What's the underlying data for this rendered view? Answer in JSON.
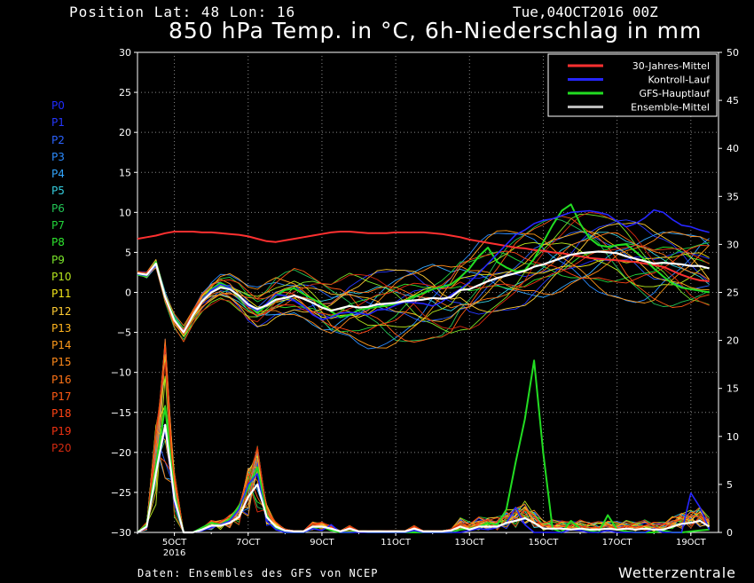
{
  "header": {
    "position": "Position  Lat: 48 Lon: 16",
    "date": "Tue,04OCT2016 00Z",
    "title": "850 hPa Temp. in °C, 6h-Niederschlag in mm"
  },
  "footer": {
    "source": "Daten: Ensembles des GFS von NCEP",
    "brand": "Wetterzentrale"
  },
  "members": [
    {
      "label": "P0",
      "color": "#1f2bff"
    },
    {
      "label": "P1",
      "color": "#2638ff"
    },
    {
      "label": "P2",
      "color": "#2b63ff"
    },
    {
      "label": "P3",
      "color": "#2b8bff"
    },
    {
      "label": "P4",
      "color": "#33a6ff"
    },
    {
      "label": "P5",
      "color": "#35cfe0"
    },
    {
      "label": "P6",
      "color": "#22c455"
    },
    {
      "label": "P7",
      "color": "#22d43a"
    },
    {
      "label": "P8",
      "color": "#2ee62e"
    },
    {
      "label": "P9",
      "color": "#7ae62a"
    },
    {
      "label": "P10",
      "color": "#b6e61e"
    },
    {
      "label": "P11",
      "color": "#f2e61a"
    },
    {
      "label": "P12",
      "color": "#ffcc33"
    },
    {
      "label": "P13",
      "color": "#ffb41e"
    },
    {
      "label": "P14",
      "color": "#ff9a1a"
    },
    {
      "label": "P15",
      "color": "#ff8a1a"
    },
    {
      "label": "P16",
      "color": "#ff7316"
    },
    {
      "label": "P17",
      "color": "#ff5a14"
    },
    {
      "label": "P18",
      "color": "#ff4414"
    },
    {
      "label": "P19",
      "color": "#f03212"
    },
    {
      "label": "P20",
      "color": "#d42a10"
    }
  ],
  "chart_data": {
    "type": "line",
    "y_left": {
      "min": -30,
      "max": 30,
      "ticks": [
        30,
        25,
        20,
        15,
        10,
        5,
        0,
        -5,
        -10,
        -15,
        -20,
        -25,
        -30
      ]
    },
    "y_right": {
      "min": 0,
      "max": 50,
      "ticks": [
        50,
        45,
        40,
        35,
        30,
        25,
        20,
        15,
        10,
        5,
        0
      ]
    },
    "x_ticks": [
      {
        "day": 5,
        "label": "5OCT",
        "sub": "2016"
      },
      {
        "day": 7,
        "label": "7OCT",
        "sub": ""
      },
      {
        "day": 9,
        "label": "9OCT",
        "sub": ""
      },
      {
        "day": 11,
        "label": "11OCT",
        "sub": ""
      },
      {
        "day": 13,
        "label": "13OCT",
        "sub": ""
      },
      {
        "day": 15,
        "label": "15OCT",
        "sub": ""
      },
      {
        "day": 17,
        "label": "17OCT",
        "sub": ""
      },
      {
        "day": 19,
        "label": "19OCT",
        "sub": ""
      }
    ],
    "x_range_days": [
      4,
      19.75
    ],
    "grid": true,
    "legend": {
      "position": "top-right",
      "entries": [
        {
          "label": "30-Jahres-Mittel",
          "color": "#ff3030"
        },
        {
          "label": "Kontroll-Lauf",
          "color": "#2626ff"
        },
        {
          "label": "GFS-Hauptlauf",
          "color": "#22dd22"
        },
        {
          "label": "Ensemble-Mittel",
          "color": "#bbbbbb"
        }
      ]
    },
    "step_hours": 6,
    "temp_climate": [
      6.7,
      6.9,
      7.1,
      7.4,
      7.6,
      7.6,
      7.6,
      7.5,
      7.5,
      7.4,
      7.3,
      7.2,
      7.0,
      6.7,
      6.4,
      6.3,
      6.5,
      6.7,
      6.9,
      7.1,
      7.3,
      7.5,
      7.6,
      7.6,
      7.5,
      7.4,
      7.4,
      7.4,
      7.5,
      7.5,
      7.5,
      7.5,
      7.4,
      7.3,
      7.1,
      6.9,
      6.6,
      6.4,
      6.2,
      6.0,
      5.8,
      5.6,
      5.5,
      5.3,
      5.2,
      5.0,
      4.9,
      4.7,
      4.5,
      4.3,
      4.2,
      4.1,
      4.0,
      3.9,
      3.8,
      3.6,
      3.4,
      3.2,
      2.7,
      2.2,
      1.8,
      1.5,
      1.4
    ],
    "temp_ensemble_mean": [
      2.4,
      2.2,
      3.6,
      -0.6,
      -3.5,
      -5.0,
      -2.9,
      -1.1,
      0.0,
      0.6,
      0.4,
      -0.4,
      -1.5,
      -2.1,
      -1.6,
      -0.9,
      -0.7,
      -0.4,
      -0.8,
      -1.3,
      -1.9,
      -2.3,
      -2.0,
      -1.7,
      -1.9,
      -1.8,
      -1.5,
      -1.4,
      -1.3,
      -1.1,
      -1.0,
      -0.9,
      -0.7,
      -0.8,
      -0.6,
      0.3,
      0.4,
      0.9,
      1.4,
      1.8,
      2.1,
      2.4,
      2.7,
      3.2,
      3.5,
      3.9,
      4.3,
      4.7,
      4.9,
      5.0,
      5.1,
      5.0,
      4.9,
      4.5,
      4.2,
      3.9,
      3.6,
      3.7,
      3.6,
      3.5,
      3.3,
      3.3,
      3.0
    ],
    "temp_control": [
      2.3,
      2.1,
      3.4,
      -0.7,
      -3.4,
      -4.9,
      -2.8,
      -1.0,
      0.3,
      1.0,
      0.6,
      -0.5,
      -1.7,
      -2.3,
      -1.4,
      -0.3,
      -0.4,
      -1.0,
      -1.7,
      -2.8,
      -3.4,
      -3.1,
      -2.6,
      -2.5,
      -2.6,
      -2.8,
      -2.2,
      -2.1,
      -1.6,
      -1.2,
      -1.3,
      -1.4,
      -1.7,
      -1.2,
      -0.3,
      0.4,
      1.3,
      2.4,
      3.6,
      4.8,
      6.0,
      7.2,
      7.8,
      8.6,
      9.0,
      9.2,
      9.6,
      10.0,
      10.1,
      10.2,
      10.0,
      9.7,
      8.9,
      8.2,
      8.6,
      9.3,
      10.3,
      10.0,
      9.1,
      8.4,
      8.2,
      7.8,
      7.5
    ],
    "temp_gfs": [
      2.2,
      2.0,
      3.8,
      -0.5,
      -3.2,
      -5.0,
      -3.0,
      -1.0,
      0.4,
      1.2,
      0.6,
      -0.6,
      -1.6,
      -2.6,
      -1.6,
      -0.4,
      0.3,
      0.5,
      -0.2,
      -0.8,
      -1.5,
      -2.4,
      -3.1,
      -2.8,
      -2.2,
      -2.0,
      -1.8,
      -1.7,
      -1.4,
      -1.1,
      -0.5,
      -0.1,
      0.4,
      0.7,
      1.0,
      1.9,
      3.0,
      4.5,
      5.6,
      3.8,
      3.1,
      2.6,
      2.8,
      4.2,
      6.3,
      8.4,
      10.2,
      11.0,
      8.6,
      6.8,
      5.9,
      5.7,
      5.9,
      6.0,
      5.1,
      4.1,
      3.0,
      2.0,
      1.1,
      0.6,
      0.4,
      0.2,
      0.0
    ],
    "precip_ensemble_mean": [
      0,
      0.6,
      6.2,
      11.2,
      3.5,
      0,
      0,
      0.3,
      0.7,
      0.7,
      1.0,
      1.6,
      3.7,
      5.0,
      1.6,
      0.6,
      0.2,
      0.1,
      0.1,
      0.6,
      0.6,
      0.4,
      0.1,
      0.4,
      0.1,
      0.1,
      0.1,
      0.1,
      0.1,
      0.1,
      0.4,
      0.1,
      0.1,
      0.1,
      0.2,
      0.6,
      0.3,
      0.6,
      0.6,
      0.6,
      1.0,
      1.2,
      1.5,
      1.0,
      0.4,
      0.4,
      0.4,
      0.3,
      0.4,
      0.3,
      0.3,
      0.4,
      0.3,
      0.4,
      0.3,
      0.4,
      0.3,
      0.3,
      0.6,
      0.9,
      1.0,
      1.2,
      0.6
    ],
    "precip_control": [
      0,
      0.5,
      6.0,
      10.8,
      3.0,
      0,
      0,
      0.2,
      0.5,
      0.8,
      1.2,
      2.4,
      5.0,
      6.1,
      1.2,
      0.3,
      0,
      0,
      0,
      0.4,
      0.2,
      0.8,
      0,
      0,
      0,
      0,
      0,
      0,
      0,
      0,
      0.2,
      0,
      0,
      0,
      0,
      0,
      0.2,
      0.4,
      0.3,
      0.5,
      1.0,
      2.6,
      0.8,
      0,
      0,
      0,
      0,
      0.3,
      0.2,
      0,
      0,
      0.2,
      0,
      0,
      0,
      0,
      0.4,
      0,
      0,
      0,
      4.1,
      2.6,
      0.3
    ],
    "precip_gfs": [
      0,
      0.8,
      7.0,
      13.1,
      4.0,
      0,
      0,
      0.5,
      1.0,
      0.8,
      1.4,
      2.7,
      4.6,
      6.8,
      1.8,
      0.4,
      0,
      0,
      0,
      0.4,
      0.6,
      0.2,
      0,
      0,
      0.1,
      0,
      0,
      0,
      0,
      0,
      0,
      0,
      0,
      0,
      0,
      0.3,
      0.4,
      0.6,
      1.0,
      0.8,
      2.4,
      7.3,
      11.8,
      17.9,
      8.2,
      0.4,
      0,
      1.2,
      0.4,
      0.2,
      0,
      1.8,
      0.3,
      0.1,
      0,
      0,
      0,
      0.2,
      0,
      0,
      0.1,
      0.2,
      0.3
    ]
  }
}
